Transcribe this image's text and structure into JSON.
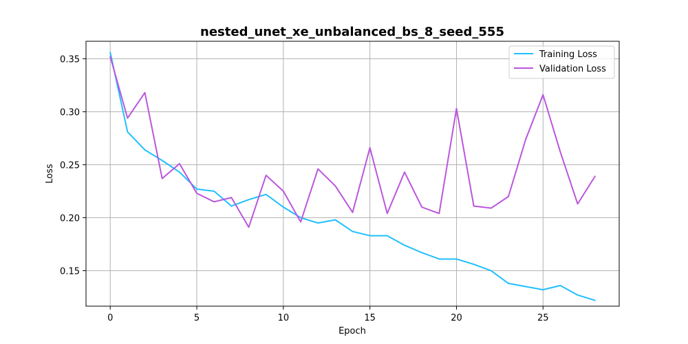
{
  "chart_data": {
    "type": "line",
    "title": "nested_unet_xe_unbalanced_bs_8_seed_555",
    "xlabel": "Epoch",
    "ylabel": "Loss",
    "xlim": [
      -1.4,
      29.4
    ],
    "ylim": [
      0.1165,
      0.3665
    ],
    "xticks": [
      0,
      5,
      10,
      15,
      20,
      25
    ],
    "yticks": [
      0.15,
      0.2,
      0.25,
      0.3,
      0.35
    ],
    "ytick_labels": [
      "0.15",
      "0.20",
      "0.25",
      "0.30",
      "0.35"
    ],
    "grid": true,
    "legend_position": "top-right",
    "x": [
      0,
      1,
      2,
      3,
      4,
      5,
      6,
      7,
      8,
      9,
      10,
      11,
      12,
      13,
      14,
      15,
      16,
      17,
      18,
      19,
      20,
      21,
      22,
      23,
      24,
      25,
      26,
      27,
      28
    ],
    "series": [
      {
        "name": "Training Loss",
        "color": "#1fbfff",
        "values": [
          0.356,
          0.281,
          0.264,
          0.254,
          0.243,
          0.227,
          0.225,
          0.211,
          0.217,
          0.222,
          0.21,
          0.2,
          0.195,
          0.198,
          0.187,
          0.183,
          0.183,
          0.174,
          0.167,
          0.161,
          0.161,
          0.156,
          0.15,
          0.138,
          0.135,
          0.132,
          0.136,
          0.127,
          0.122
        ]
      },
      {
        "name": "Validation Loss",
        "color": "#bb55dd",
        "values": [
          0.352,
          0.294,
          0.318,
          0.237,
          0.251,
          0.223,
          0.215,
          0.219,
          0.191,
          0.24,
          0.225,
          0.196,
          0.246,
          0.23,
          0.205,
          0.266,
          0.204,
          0.243,
          0.21,
          0.204,
          0.303,
          0.211,
          0.209,
          0.22,
          0.274,
          0.316,
          0.262,
          0.213,
          0.239
        ]
      }
    ]
  }
}
